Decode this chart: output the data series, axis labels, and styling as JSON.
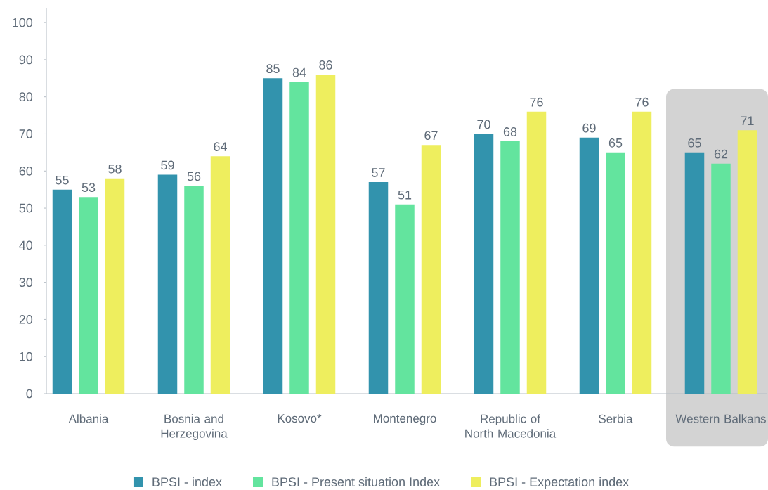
{
  "chart_data": {
    "type": "bar",
    "categories": [
      "Albania",
      "Bosnia and Herzegovina",
      "Kosovo*",
      "Montenegro",
      "Republic of North Macedonia",
      "Serbia",
      "Western Balkans"
    ],
    "series": [
      {
        "name": "BPSI - index",
        "color": "#3293ad",
        "values": [
          55,
          59,
          85,
          57,
          70,
          69,
          65
        ]
      },
      {
        "name": "BPSI - Present situation Index",
        "color": "#63e49e",
        "values": [
          53,
          56,
          84,
          51,
          68,
          65,
          62
        ]
      },
      {
        "name": "BPSI - Expectation index",
        "color": "#eeee5e",
        "values": [
          58,
          64,
          86,
          67,
          76,
          76,
          71
        ]
      }
    ],
    "ylim": [
      0,
      104
    ],
    "yticks": [
      0,
      10,
      20,
      30,
      40,
      50,
      60,
      70,
      80,
      90,
      100
    ],
    "data_labels": true,
    "legend": "bottom",
    "bands": [
      {
        "axis": "x",
        "from": "Western Balkans",
        "to": "Western Balkans",
        "color": "#d3d3d3"
      }
    ]
  }
}
